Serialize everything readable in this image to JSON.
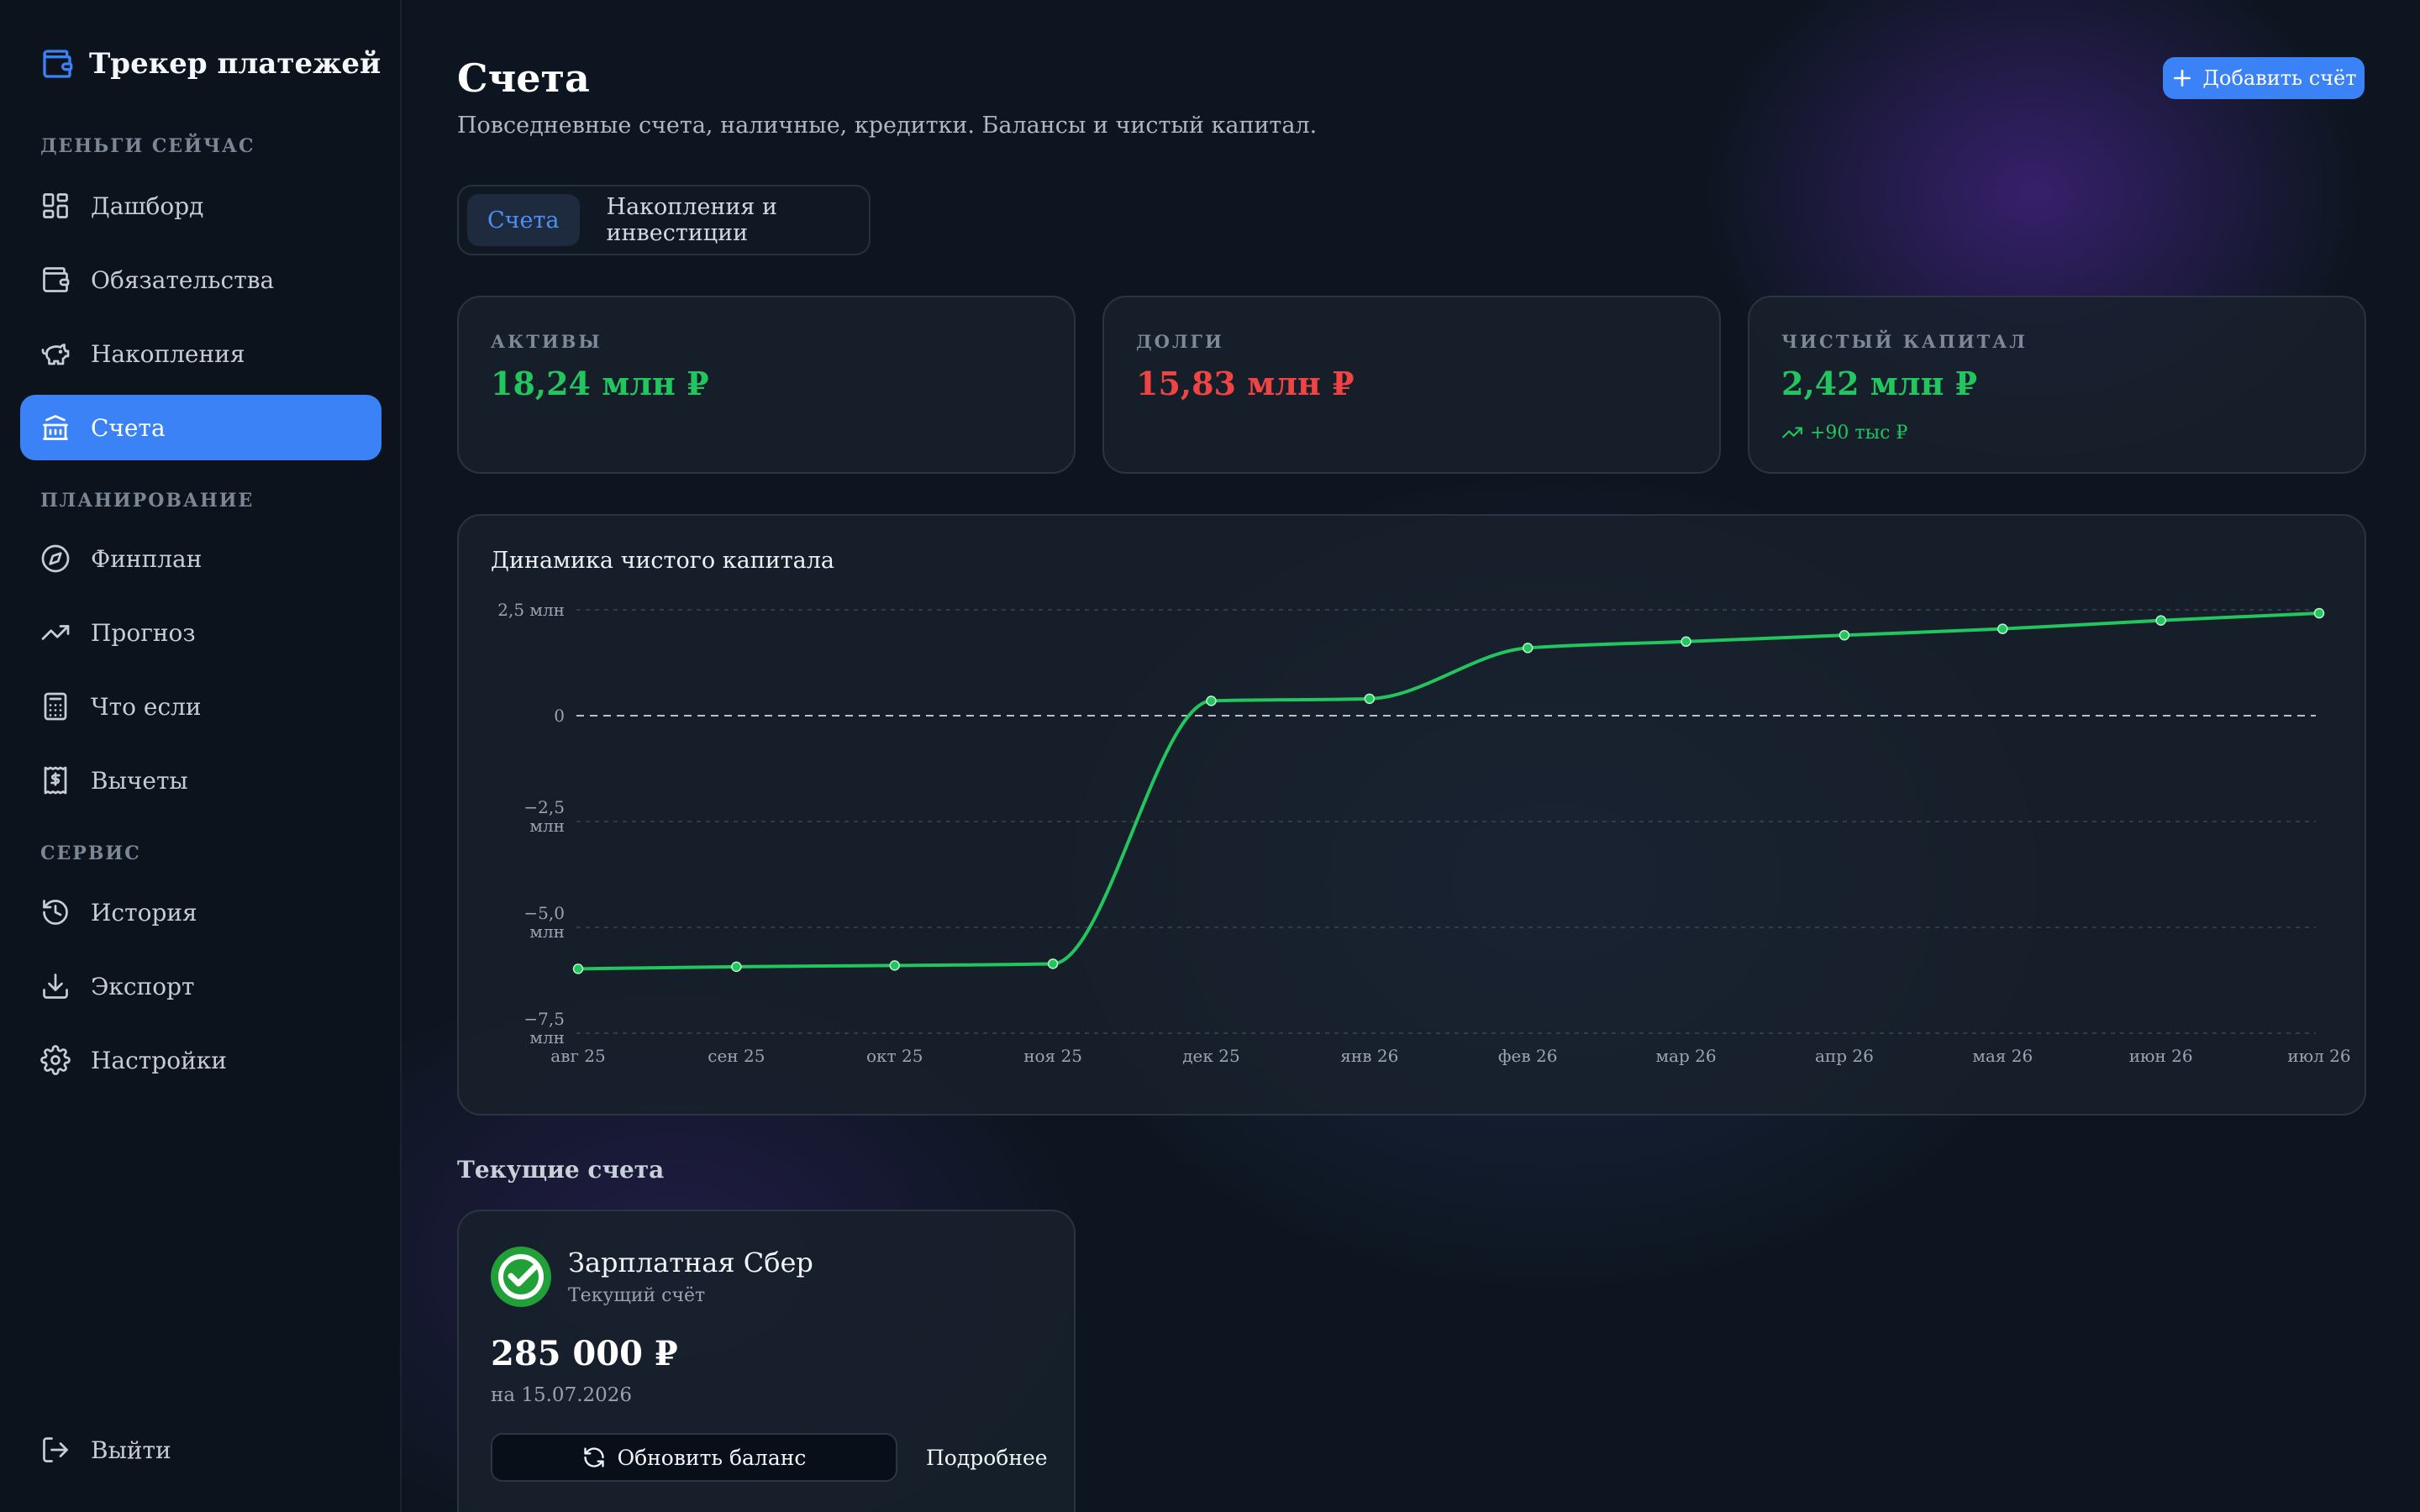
{
  "app": {
    "title": "Трекер платежей"
  },
  "sidebar": {
    "sections": [
      {
        "label": "ДЕНЬГИ СЕЙЧАС"
      },
      {
        "label": "ПЛАНИРОВАНИЕ"
      },
      {
        "label": "СЕРВИС"
      }
    ],
    "items": [
      {
        "label": "Дашборд",
        "icon": "dashboard-icon"
      },
      {
        "label": "Обязательства",
        "icon": "wallet-icon"
      },
      {
        "label": "Накопления",
        "icon": "piggy-bank-icon"
      },
      {
        "label": "Счета",
        "icon": "bank-icon",
        "active": true
      },
      {
        "label": "Финплан",
        "icon": "compass-icon"
      },
      {
        "label": "Прогноз",
        "icon": "trending-up-icon"
      },
      {
        "label": "Что если",
        "icon": "calculator-icon"
      },
      {
        "label": "Вычеты",
        "icon": "receipt-icon"
      },
      {
        "label": "История",
        "icon": "history-icon"
      },
      {
        "label": "Экспорт",
        "icon": "download-icon"
      },
      {
        "label": "Настройки",
        "icon": "gear-icon"
      }
    ],
    "logout": {
      "label": "Выйти",
      "icon": "logout-icon"
    }
  },
  "header": {
    "title": "Счета",
    "subtitle": "Повседневные счета, наличные, кредитки. Балансы и чистый капитал.",
    "add_button": "Добавить счёт"
  },
  "tabs": [
    {
      "label": "Счета",
      "active": true
    },
    {
      "label": "Накопления и инвестиции",
      "active": false
    }
  ],
  "stats": {
    "assets": {
      "label": "АКТИВЫ",
      "value": "18,24 млн ₽"
    },
    "debts": {
      "label": "ДОЛГИ",
      "value": "15,83 млн ₽"
    },
    "net": {
      "label": "ЧИСТЫЙ КАПИТАЛ",
      "value": "2,42 млн ₽",
      "delta": "+90 тыс ₽"
    }
  },
  "colors": {
    "accent": "#3b82f6",
    "positive": "#22c55e",
    "negative": "#ef4444"
  },
  "chart_data": {
    "type": "line",
    "title": "Динамика чистого капитала",
    "categories": [
      "авг 25",
      "сен 25",
      "окт 25",
      "ноя 25",
      "дек 25",
      "янв 26",
      "фев 26",
      "мар 26",
      "апр 26",
      "мая 26",
      "июн 26",
      "июл 26"
    ],
    "series": [
      {
        "values": [
          -5.98,
          -5.93,
          -5.9,
          -5.86,
          0.35,
          0.4,
          1.6,
          1.75,
          1.9,
          2.05,
          2.25,
          2.42
        ]
      }
    ],
    "yticks": [
      {
        "value": 2.5,
        "label": [
          "2,5 млн"
        ]
      },
      {
        "value": 0,
        "label": [
          "0"
        ]
      },
      {
        "value": -2.5,
        "label": [
          "−2,5",
          "млн"
        ]
      },
      {
        "value": -5,
        "label": [
          "−5,0",
          "млн"
        ]
      },
      {
        "value": -7.5,
        "label": [
          "−7,5",
          "млн"
        ]
      }
    ],
    "ylim": [
      -7.5,
      2.5
    ],
    "grid": true,
    "zero_line": "dashed"
  },
  "accounts_section": {
    "title": "Текущие счета"
  },
  "accounts": [
    {
      "name": "Зарплатная Сбер",
      "type": "Текущий счёт",
      "balance": "285 000 ₽",
      "date": "на 15.07.2026",
      "update_label": "Обновить баланс",
      "more_label": "Подробнее",
      "logo_icon": "sber-logo-icon"
    }
  ]
}
